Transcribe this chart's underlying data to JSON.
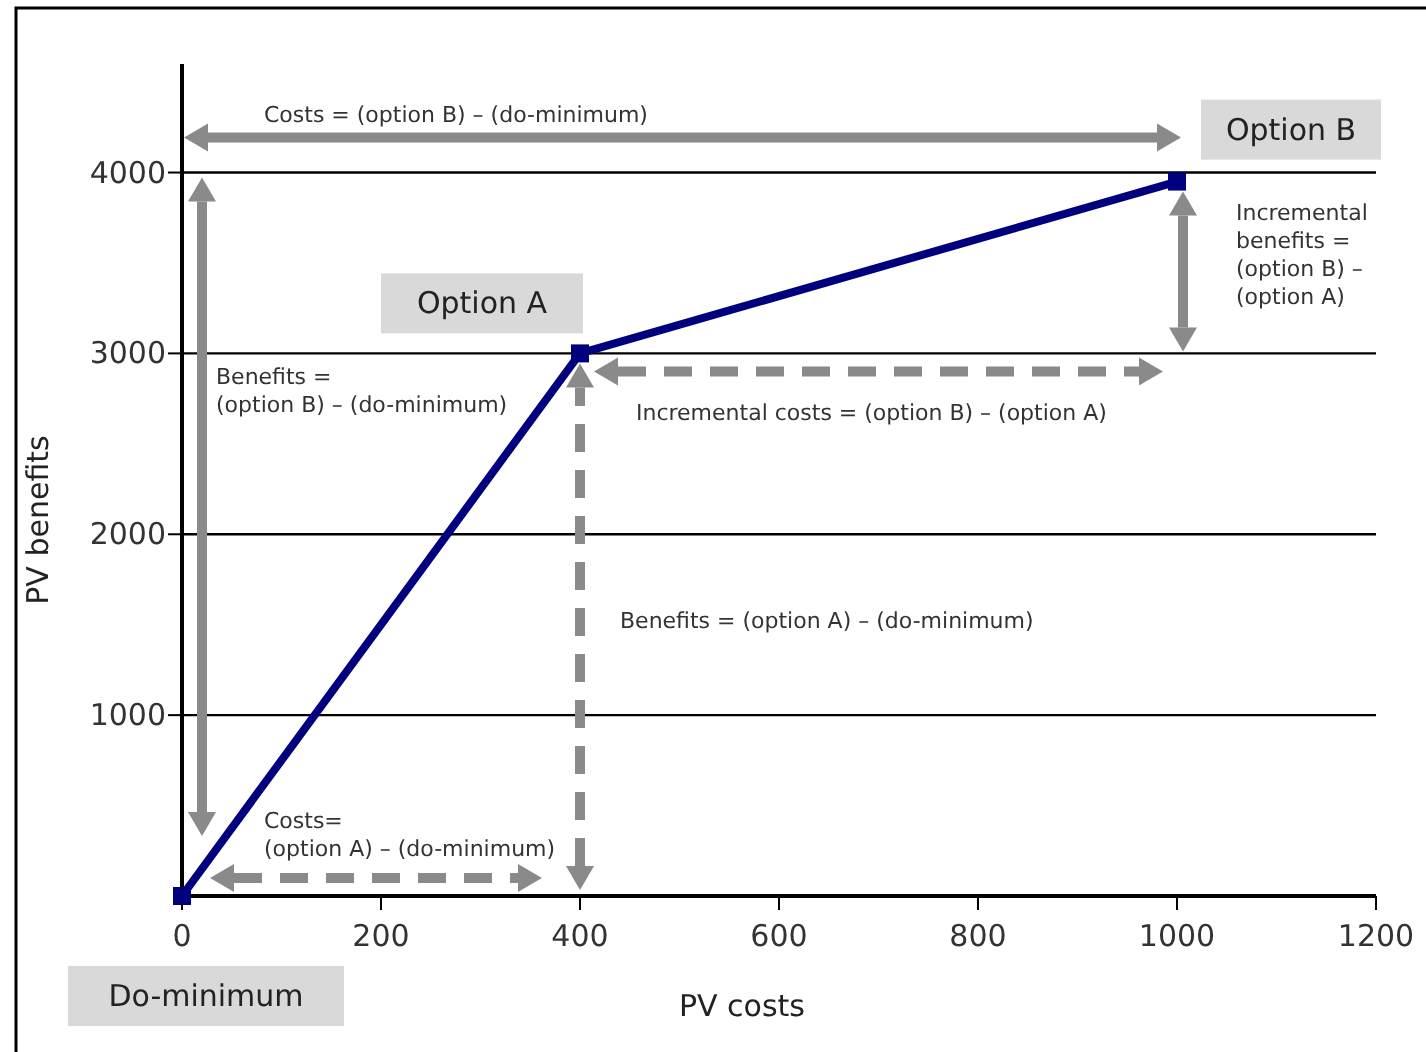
{
  "chart_data": {
    "type": "line",
    "xlabel": "PV costs",
    "ylabel": "PV benefits",
    "x": [
      0,
      400,
      1000
    ],
    "series": [
      {
        "color": "#00007f",
        "values": [
          0,
          3000,
          3950
        ]
      }
    ],
    "xlim": [
      0,
      1200
    ],
    "xticks": [
      0,
      200,
      400,
      600,
      800,
      1000,
      1200
    ],
    "ylim": [
      0,
      4600
    ],
    "yticks": [
      1000,
      2000,
      3000,
      4000
    ],
    "grid": "y",
    "marker": "square",
    "line_style": "solid",
    "annotations": [
      {
        "text": "Do-minimum",
        "x": 0,
        "y": 0
      },
      {
        "text": "Option A",
        "x": 400,
        "y": 3000
      },
      {
        "text": "Option B",
        "x": 1000,
        "y": 3950
      },
      "Costs = (option B) – (do-minimum)",
      "Benefits =\n(option B) – (do-minimum)",
      "Incremental\nbenefits =\n(option B) –\n(option A)",
      "Incremental costs = (option B) – (option A)",
      "Benefits = (option A) – (do-minimum)",
      "Costs=\n(option A) – (do-minimum)"
    ]
  }
}
